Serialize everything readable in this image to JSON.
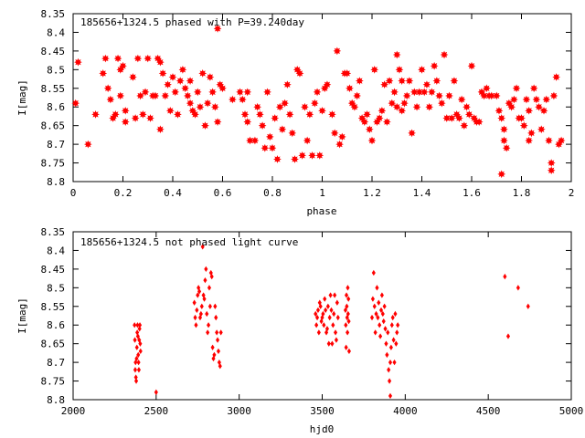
{
  "chart_data": [
    {
      "type": "scatter",
      "title": "185656+1324.5 phased with P=39.240day",
      "xlabel": "phase",
      "ylabel": "I[mag]",
      "xlim": [
        0,
        2
      ],
      "ylim": [
        8.35,
        8.8
      ],
      "y_inverted": true,
      "x_ticks": [
        "0",
        "0.2",
        "0.4",
        "0.6",
        "0.8",
        "1",
        "1.2",
        "1.4",
        "1.6",
        "1.8",
        "2"
      ],
      "y_ticks": [
        "8.35",
        "8.4",
        "8.45",
        "8.5",
        "8.55",
        "8.6",
        "8.65",
        "8.7",
        "8.75",
        "8.8"
      ],
      "grid": false,
      "marker_color": "#ff0000",
      "marker": "star",
      "points": [
        [
          0.01,
          8.59
        ],
        [
          0.02,
          8.48
        ],
        [
          0.06,
          8.7
        ],
        [
          0.09,
          8.62
        ],
        [
          0.12,
          8.51
        ],
        [
          0.13,
          8.47
        ],
        [
          0.14,
          8.55
        ],
        [
          0.15,
          8.58
        ],
        [
          0.16,
          8.63
        ],
        [
          0.17,
          8.62
        ],
        [
          0.18,
          8.47
        ],
        [
          0.19,
          8.5
        ],
        [
          0.19,
          8.57
        ],
        [
          0.2,
          8.49
        ],
        [
          0.21,
          8.61
        ],
        [
          0.21,
          8.64
        ],
        [
          0.24,
          8.52
        ],
        [
          0.25,
          8.63
        ],
        [
          0.26,
          8.47
        ],
        [
          0.27,
          8.57
        ],
        [
          0.28,
          8.62
        ],
        [
          0.29,
          8.56
        ],
        [
          0.3,
          8.47
        ],
        [
          0.31,
          8.63
        ],
        [
          0.32,
          8.57
        ],
        [
          0.33,
          8.57
        ],
        [
          0.34,
          8.47
        ],
        [
          0.35,
          8.66
        ],
        [
          0.35,
          8.48
        ],
        [
          0.36,
          8.51
        ],
        [
          0.37,
          8.57
        ],
        [
          0.38,
          8.54
        ],
        [
          0.39,
          8.61
        ],
        [
          0.4,
          8.52
        ],
        [
          0.41,
          8.56
        ],
        [
          0.42,
          8.62
        ],
        [
          0.43,
          8.53
        ],
        [
          0.44,
          8.5
        ],
        [
          0.45,
          8.55
        ],
        [
          0.46,
          8.57
        ],
        [
          0.47,
          8.59
        ],
        [
          0.47,
          8.53
        ],
        [
          0.48,
          8.61
        ],
        [
          0.49,
          8.62
        ],
        [
          0.5,
          8.56
        ],
        [
          0.51,
          8.6
        ],
        [
          0.52,
          8.51
        ],
        [
          0.53,
          8.65
        ],
        [
          0.54,
          8.59
        ],
        [
          0.55,
          8.52
        ],
        [
          0.56,
          8.56
        ],
        [
          0.57,
          8.6
        ],
        [
          0.58,
          8.64
        ],
        [
          0.58,
          8.39
        ],
        [
          0.59,
          8.54
        ],
        [
          0.6,
          8.55
        ],
        [
          0.64,
          8.58
        ],
        [
          0.67,
          8.56
        ],
        [
          0.68,
          8.58
        ],
        [
          0.69,
          8.62
        ],
        [
          0.7,
          8.64
        ],
        [
          0.7,
          8.56
        ],
        [
          0.71,
          8.69
        ],
        [
          0.73,
          8.69
        ],
        [
          0.74,
          8.6
        ],
        [
          0.75,
          8.62
        ],
        [
          0.76,
          8.65
        ],
        [
          0.77,
          8.71
        ],
        [
          0.78,
          8.56
        ],
        [
          0.79,
          8.68
        ],
        [
          0.8,
          8.71
        ],
        [
          0.81,
          8.63
        ],
        [
          0.82,
          8.74
        ],
        [
          0.83,
          8.6
        ],
        [
          0.84,
          8.66
        ],
        [
          0.85,
          8.59
        ],
        [
          0.86,
          8.54
        ],
        [
          0.87,
          8.62
        ],
        [
          0.88,
          8.67
        ],
        [
          0.89,
          8.74
        ],
        [
          0.9,
          8.5
        ],
        [
          0.91,
          8.51
        ],
        [
          0.92,
          8.73
        ],
        [
          0.93,
          8.6
        ],
        [
          0.94,
          8.69
        ],
        [
          0.95,
          8.62
        ],
        [
          0.96,
          8.73
        ],
        [
          0.97,
          8.59
        ],
        [
          0.98,
          8.56
        ],
        [
          0.99,
          8.73
        ],
        [
          1.0,
          8.61
        ],
        [
          1.01,
          8.55
        ],
        [
          1.02,
          8.54
        ],
        [
          1.04,
          8.62
        ],
        [
          1.05,
          8.67
        ],
        [
          1.06,
          8.45
        ],
        [
          1.07,
          8.7
        ],
        [
          1.08,
          8.68
        ],
        [
          1.09,
          8.51
        ],
        [
          1.1,
          8.51
        ],
        [
          1.11,
          8.55
        ],
        [
          1.12,
          8.59
        ],
        [
          1.13,
          8.6
        ],
        [
          1.14,
          8.57
        ],
        [
          1.15,
          8.53
        ],
        [
          1.16,
          8.63
        ],
        [
          1.17,
          8.64
        ],
        [
          1.18,
          8.62
        ],
        [
          1.19,
          8.66
        ],
        [
          1.2,
          8.69
        ],
        [
          1.21,
          8.5
        ],
        [
          1.22,
          8.64
        ],
        [
          1.23,
          8.63
        ],
        [
          1.24,
          8.61
        ],
        [
          1.25,
          8.54
        ],
        [
          1.26,
          8.64
        ],
        [
          1.27,
          8.53
        ],
        [
          1.28,
          8.59
        ],
        [
          1.29,
          8.56
        ],
        [
          1.3,
          8.46
        ],
        [
          1.3,
          8.6
        ],
        [
          1.31,
          8.5
        ],
        [
          1.32,
          8.53
        ],
        [
          1.32,
          8.61
        ],
        [
          1.33,
          8.59
        ],
        [
          1.34,
          8.57
        ],
        [
          1.35,
          8.53
        ],
        [
          1.36,
          8.67
        ],
        [
          1.37,
          8.56
        ],
        [
          1.38,
          8.6
        ],
        [
          1.39,
          8.56
        ],
        [
          1.4,
          8.5
        ],
        [
          1.41,
          8.56
        ],
        [
          1.42,
          8.54
        ],
        [
          1.43,
          8.6
        ],
        [
          1.44,
          8.56
        ],
        [
          1.45,
          8.49
        ],
        [
          1.46,
          8.53
        ],
        [
          1.47,
          8.57
        ],
        [
          1.48,
          8.59
        ],
        [
          1.49,
          8.46
        ],
        [
          1.5,
          8.63
        ],
        [
          1.51,
          8.57
        ],
        [
          1.52,
          8.63
        ],
        [
          1.53,
          8.53
        ],
        [
          1.54,
          8.62
        ],
        [
          1.55,
          8.63
        ],
        [
          1.56,
          8.58
        ],
        [
          1.57,
          8.65
        ],
        [
          1.58,
          8.6
        ],
        [
          1.59,
          8.62
        ],
        [
          1.6,
          8.49
        ],
        [
          1.61,
          8.63
        ],
        [
          1.62,
          8.64
        ],
        [
          1.63,
          8.64
        ],
        [
          1.64,
          8.56
        ],
        [
          1.65,
          8.57
        ],
        [
          1.66,
          8.55
        ],
        [
          1.67,
          8.57
        ],
        [
          1.68,
          8.57
        ],
        [
          1.7,
          8.57
        ],
        [
          1.71,
          8.61
        ],
        [
          1.72,
          8.63
        ],
        [
          1.72,
          8.78
        ],
        [
          1.73,
          8.66
        ],
        [
          1.73,
          8.69
        ],
        [
          1.74,
          8.71
        ],
        [
          1.75,
          8.59
        ],
        [
          1.76,
          8.6
        ],
        [
          1.77,
          8.58
        ],
        [
          1.78,
          8.55
        ],
        [
          1.79,
          8.63
        ],
        [
          1.8,
          8.63
        ],
        [
          1.81,
          8.65
        ],
        [
          1.82,
          8.58
        ],
        [
          1.83,
          8.61
        ],
        [
          1.83,
          8.69
        ],
        [
          1.84,
          8.67
        ],
        [
          1.85,
          8.55
        ],
        [
          1.86,
          8.58
        ],
        [
          1.87,
          8.6
        ],
        [
          1.88,
          8.66
        ],
        [
          1.89,
          8.61
        ],
        [
          1.9,
          8.58
        ],
        [
          1.91,
          8.69
        ],
        [
          1.92,
          8.75
        ],
        [
          1.92,
          8.77
        ],
        [
          1.93,
          8.57
        ],
        [
          1.94,
          8.52
        ],
        [
          1.95,
          8.7
        ],
        [
          1.96,
          8.69
        ]
      ]
    },
    {
      "type": "scatter",
      "title": "185656+1324.5 not phased light curve",
      "xlabel": "hjd0",
      "ylabel": "I[mag]",
      "xlim": [
        2000,
        5000
      ],
      "ylim": [
        8.35,
        8.8
      ],
      "y_inverted": true,
      "x_ticks": [
        "2000",
        "2500",
        "3000",
        "3500",
        "4000",
        "4500",
        "5000"
      ],
      "y_ticks": [
        "8.35",
        "8.4",
        "8.45",
        "8.5",
        "8.55",
        "8.6",
        "8.65",
        "8.7",
        "8.75",
        "8.8"
      ],
      "grid": false,
      "marker_color": "#ff0000",
      "marker": "diamond",
      "points": [
        [
          2370,
          8.6
        ],
        [
          2372,
          8.64
        ],
        [
          2374,
          8.72
        ],
        [
          2376,
          8.7
        ],
        [
          2378,
          8.74
        ],
        [
          2380,
          8.75
        ],
        [
          2382,
          8.69
        ],
        [
          2384,
          8.66
        ],
        [
          2386,
          8.62
        ],
        [
          2388,
          8.6
        ],
        [
          2390,
          8.63
        ],
        [
          2392,
          8.68
        ],
        [
          2394,
          8.7
        ],
        [
          2396,
          8.72
        ],
        [
          2398,
          8.64
        ],
        [
          2400,
          8.61
        ],
        [
          2402,
          8.6
        ],
        [
          2404,
          8.65
        ],
        [
          2406,
          8.67
        ],
        [
          2500,
          8.78
        ],
        [
          2730,
          8.54
        ],
        [
          2735,
          8.58
        ],
        [
          2740,
          8.6
        ],
        [
          2745,
          8.56
        ],
        [
          2750,
          8.52
        ],
        [
          2755,
          8.5
        ],
        [
          2760,
          8.51
        ],
        [
          2765,
          8.58
        ],
        [
          2770,
          8.57
        ],
        [
          2775,
          8.55
        ],
        [
          2780,
          8.39
        ],
        [
          2785,
          8.52
        ],
        [
          2790,
          8.53
        ],
        [
          2795,
          8.48
        ],
        [
          2800,
          8.45
        ],
        [
          2805,
          8.57
        ],
        [
          2810,
          8.62
        ],
        [
          2815,
          8.6
        ],
        [
          2820,
          8.5
        ],
        [
          2825,
          8.55
        ],
        [
          2830,
          8.46
        ],
        [
          2835,
          8.47
        ],
        [
          2840,
          8.66
        ],
        [
          2845,
          8.69
        ],
        [
          2850,
          8.68
        ],
        [
          2855,
          8.55
        ],
        [
          2860,
          8.58
        ],
        [
          2865,
          8.62
        ],
        [
          2870,
          8.64
        ],
        [
          2875,
          8.67
        ],
        [
          2880,
          8.7
        ],
        [
          2885,
          8.71
        ],
        [
          2890,
          8.62
        ],
        [
          3460,
          8.57
        ],
        [
          3465,
          8.6
        ],
        [
          3470,
          8.58
        ],
        [
          3475,
          8.56
        ],
        [
          3480,
          8.62
        ],
        [
          3485,
          8.54
        ],
        [
          3490,
          8.55
        ],
        [
          3495,
          8.59
        ],
        [
          3500,
          8.58
        ],
        [
          3505,
          8.57
        ],
        [
          3510,
          8.6
        ],
        [
          3515,
          8.53
        ],
        [
          3520,
          8.56
        ],
        [
          3525,
          8.62
        ],
        [
          3530,
          8.61
        ],
        [
          3535,
          8.55
        ],
        [
          3540,
          8.65
        ],
        [
          3545,
          8.58
        ],
        [
          3550,
          8.52
        ],
        [
          3555,
          8.56
        ],
        [
          3560,
          8.65
        ],
        [
          3565,
          8.6
        ],
        [
          3570,
          8.57
        ],
        [
          3575,
          8.52
        ],
        [
          3580,
          8.62
        ],
        [
          3585,
          8.64
        ],
        [
          3590,
          8.54
        ],
        [
          3595,
          8.58
        ],
        [
          3640,
          8.56
        ],
        [
          3642,
          8.6
        ],
        [
          3644,
          8.66
        ],
        [
          3646,
          8.52
        ],
        [
          3648,
          8.55
        ],
        [
          3650,
          8.58
        ],
        [
          3652,
          8.62
        ],
        [
          3654,
          8.5
        ],
        [
          3656,
          8.57
        ],
        [
          3658,
          8.53
        ],
        [
          3660,
          8.59
        ],
        [
          3662,
          8.67
        ],
        [
          3800,
          8.58
        ],
        [
          3805,
          8.53
        ],
        [
          3810,
          8.46
        ],
        [
          3815,
          8.55
        ],
        [
          3820,
          8.62
        ],
        [
          3825,
          8.57
        ],
        [
          3830,
          8.5
        ],
        [
          3835,
          8.58
        ],
        [
          3840,
          8.54
        ],
        [
          3845,
          8.6
        ],
        [
          3850,
          8.63
        ],
        [
          3855,
          8.56
        ],
        [
          3860,
          8.52
        ],
        [
          3865,
          8.57
        ],
        [
          3870,
          8.59
        ],
        [
          3875,
          8.55
        ],
        [
          3880,
          8.61
        ],
        [
          3885,
          8.65
        ],
        [
          3890,
          8.68
        ],
        [
          3895,
          8.62
        ],
        [
          3900,
          8.72
        ],
        [
          3905,
          8.75
        ],
        [
          3910,
          8.7
        ],
        [
          3915,
          8.66
        ],
        [
          3920,
          8.6
        ],
        [
          3925,
          8.58
        ],
        [
          3930,
          8.64
        ],
        [
          3935,
          8.7
        ],
        [
          3940,
          8.57
        ],
        [
          3945,
          8.65
        ],
        [
          3950,
          8.62
        ],
        [
          3955,
          8.6
        ],
        [
          3910,
          8.79
        ],
        [
          4600,
          8.47
        ],
        [
          4620,
          8.63
        ],
        [
          4680,
          8.5
        ],
        [
          4740,
          8.55
        ]
      ]
    }
  ]
}
